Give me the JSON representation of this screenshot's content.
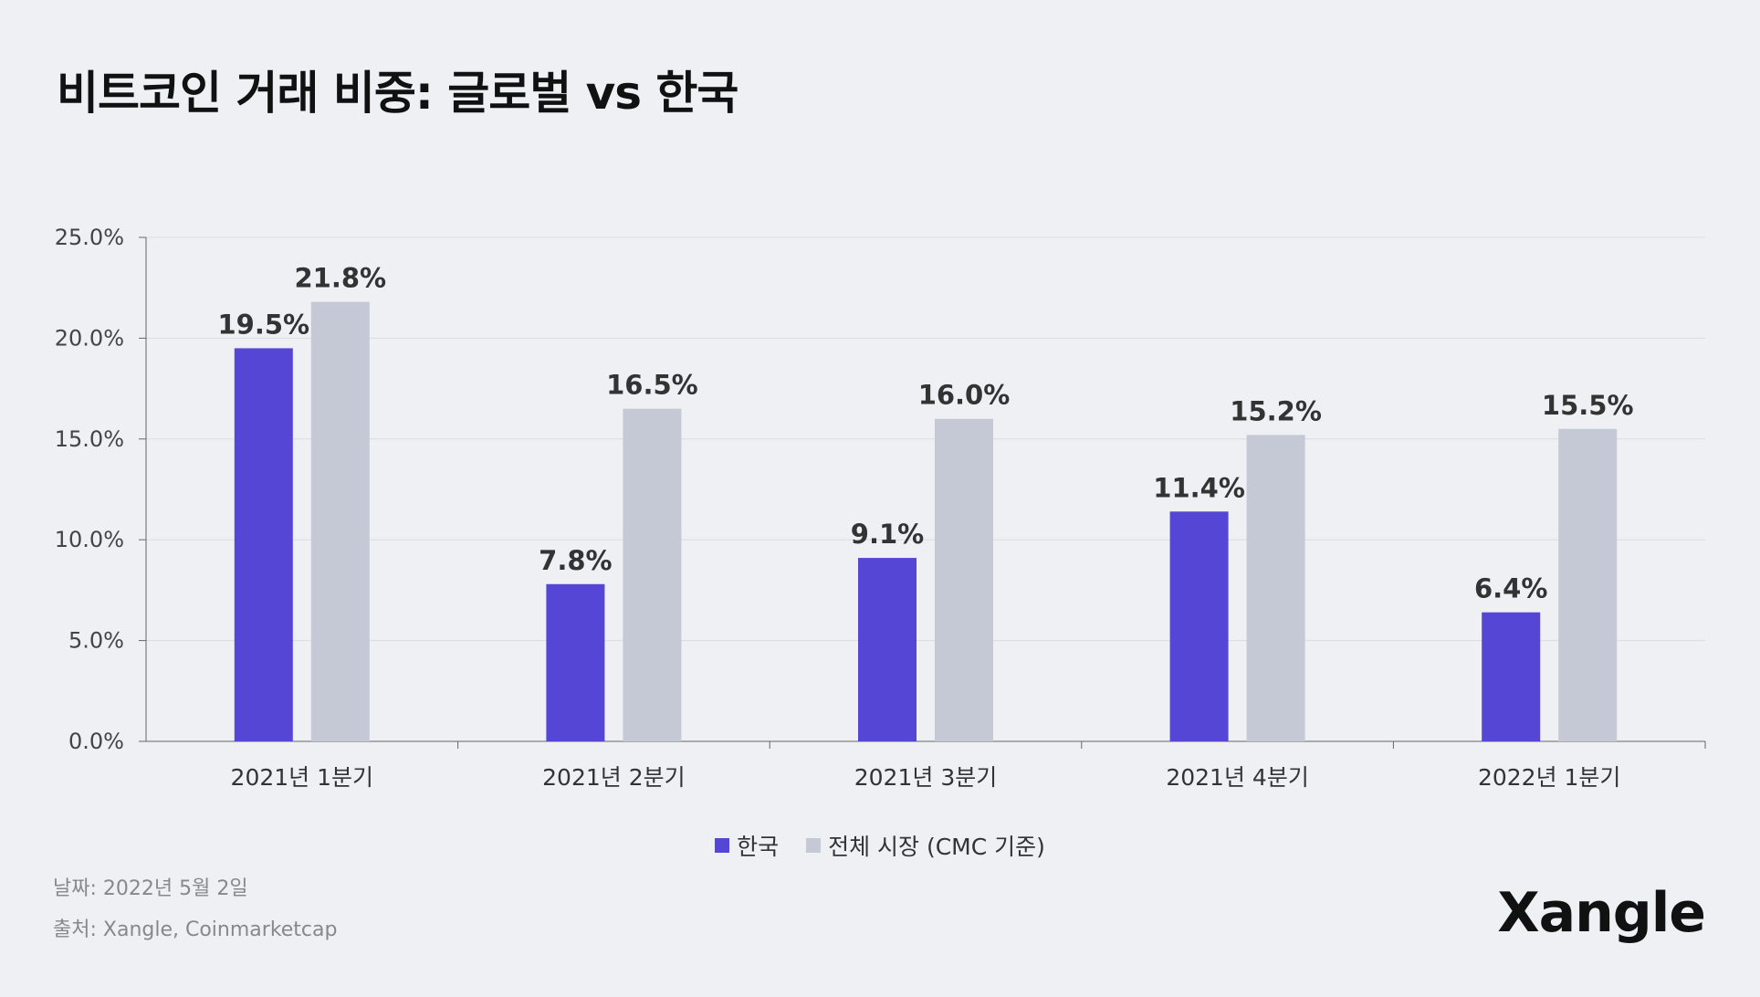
{
  "title": "비트코인 거래 비중: 글로벌 vs 한국",
  "chart_data": {
    "type": "bar",
    "title": "비트코인 거래 비중: 글로벌 vs 한국",
    "categories": [
      "2021년 1분기",
      "2021년 2분기",
      "2021년 3분기",
      "2021년 4분기",
      "2022년 1분기"
    ],
    "series": [
      {
        "name": "한국",
        "color": "#5546d6",
        "values": [
          19.5,
          7.8,
          9.1,
          11.4,
          6.4
        ],
        "labels": [
          "19.5%",
          "7.8%",
          "9.1%",
          "11.4%",
          "6.4%"
        ]
      },
      {
        "name": "전체 시장 (CMC 기준)",
        "color": "#c4c9d5",
        "values": [
          21.8,
          16.5,
          16.0,
          15.2,
          15.5
        ],
        "labels": [
          "21.8%",
          "16.5%",
          "16.0%",
          "15.2%",
          "15.5%"
        ]
      }
    ],
    "yticks": [
      0,
      5,
      10,
      15,
      20,
      25
    ],
    "ytick_labels": [
      "0.0%",
      "5.0%",
      "10.0%",
      "15.0%",
      "20.0%",
      "25.0%"
    ],
    "ylim": [
      0,
      25
    ],
    "xlabel": "",
    "ylabel": "",
    "grid": true,
    "legend_position": "bottom-center"
  },
  "footer": {
    "date": "날짜: 2022년 5월 2일",
    "source": "출처: Xangle, Coinmarketcap"
  },
  "logo": "Xangle"
}
